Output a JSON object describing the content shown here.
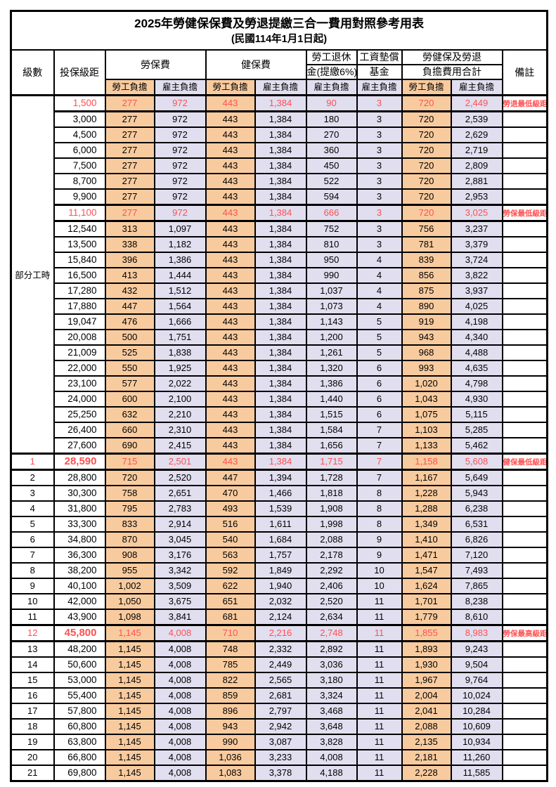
{
  "title": "2025年勞健保保費及勞退提繳三合一費用對照參考用表",
  "subtitle": "(民國114年1月1日起)",
  "colors": {
    "worker_column_bg": "#F8CB9F",
    "employer_column_bg": "#E1DEEF",
    "highlight_text": "#FF5050",
    "border": "#000000",
    "page_bg": "#FFFFFF"
  },
  "header": {
    "level_label": "級數",
    "bracket_label": "投保級距",
    "labor_label": "勞保費",
    "health_label": "健保費",
    "pension_line1": "勞工退休",
    "pension_line2": "金(提繳6%)",
    "fund_line1": "工資墊償",
    "fund_line2": "基金",
    "total_line1": "勞健保及勞退",
    "total_line2": "負擔費用合計",
    "remark_label": "備註",
    "sub_labels": [
      "勞工負擔",
      "雇主負擔",
      "勞工負擔",
      "雇主負擔",
      "雇主負擔",
      "雇主負擔",
      "勞工負擔",
      "雇主負擔"
    ]
  },
  "part_time_label": "部分工時",
  "part_time_span": 23,
  "rows": [
    {
      "bracket": "1,500",
      "values": [
        "277",
        "972",
        "443",
        "1,384",
        "90",
        "3",
        "720",
        "2,449"
      ],
      "remark": "勞退最低級距",
      "highlight": true
    },
    {
      "bracket": "3,000",
      "values": [
        "277",
        "972",
        "443",
        "1,384",
        "180",
        "3",
        "720",
        "2,539"
      ],
      "remark": ""
    },
    {
      "bracket": "4,500",
      "values": [
        "277",
        "972",
        "443",
        "1,384",
        "270",
        "3",
        "720",
        "2,629"
      ],
      "remark": ""
    },
    {
      "bracket": "6,000",
      "values": [
        "277",
        "972",
        "443",
        "1,384",
        "360",
        "3",
        "720",
        "2,719"
      ],
      "remark": ""
    },
    {
      "bracket": "7,500",
      "values": [
        "277",
        "972",
        "443",
        "1,384",
        "450",
        "3",
        "720",
        "2,809"
      ],
      "remark": ""
    },
    {
      "bracket": "8,700",
      "values": [
        "277",
        "972",
        "443",
        "1,384",
        "522",
        "3",
        "720",
        "2,881"
      ],
      "remark": ""
    },
    {
      "bracket": "9,900",
      "values": [
        "277",
        "972",
        "443",
        "1,384",
        "594",
        "3",
        "720",
        "2,953"
      ],
      "remark": ""
    },
    {
      "bracket": "11,100",
      "values": [
        "277",
        "972",
        "443",
        "1,384",
        "666",
        "3",
        "720",
        "3,025"
      ],
      "remark": "勞保最低級距",
      "highlight": true
    },
    {
      "bracket": "12,540",
      "values": [
        "313",
        "1,097",
        "443",
        "1,384",
        "752",
        "3",
        "756",
        "3,237"
      ],
      "remark": ""
    },
    {
      "bracket": "13,500",
      "values": [
        "338",
        "1,182",
        "443",
        "1,384",
        "810",
        "3",
        "781",
        "3,379"
      ],
      "remark": ""
    },
    {
      "bracket": "15,840",
      "values": [
        "396",
        "1,386",
        "443",
        "1,384",
        "950",
        "4",
        "839",
        "3,724"
      ],
      "remark": ""
    },
    {
      "bracket": "16,500",
      "values": [
        "413",
        "1,444",
        "443",
        "1,384",
        "990",
        "4",
        "856",
        "3,822"
      ],
      "remark": ""
    },
    {
      "bracket": "17,280",
      "values": [
        "432",
        "1,512",
        "443",
        "1,384",
        "1,037",
        "4",
        "875",
        "3,937"
      ],
      "remark": ""
    },
    {
      "bracket": "17,880",
      "values": [
        "447",
        "1,564",
        "443",
        "1,384",
        "1,073",
        "4",
        "890",
        "4,025"
      ],
      "remark": ""
    },
    {
      "bracket": "19,047",
      "values": [
        "476",
        "1,666",
        "443",
        "1,384",
        "1,143",
        "5",
        "919",
        "4,198"
      ],
      "remark": ""
    },
    {
      "bracket": "20,008",
      "values": [
        "500",
        "1,751",
        "443",
        "1,384",
        "1,200",
        "5",
        "943",
        "4,340"
      ],
      "remark": ""
    },
    {
      "bracket": "21,009",
      "values": [
        "525",
        "1,838",
        "443",
        "1,384",
        "1,261",
        "5",
        "968",
        "4,488"
      ],
      "remark": ""
    },
    {
      "bracket": "22,000",
      "values": [
        "550",
        "1,925",
        "443",
        "1,384",
        "1,320",
        "6",
        "993",
        "4,635"
      ],
      "remark": ""
    },
    {
      "bracket": "23,100",
      "values": [
        "577",
        "2,022",
        "443",
        "1,384",
        "1,386",
        "6",
        "1,020",
        "4,798"
      ],
      "remark": ""
    },
    {
      "bracket": "24,000",
      "values": [
        "600",
        "2,100",
        "443",
        "1,384",
        "1,440",
        "6",
        "1,043",
        "4,930"
      ],
      "remark": ""
    },
    {
      "bracket": "25,250",
      "values": [
        "632",
        "2,210",
        "443",
        "1,384",
        "1,515",
        "6",
        "1,075",
        "5,115"
      ],
      "remark": ""
    },
    {
      "bracket": "26,400",
      "values": [
        "660",
        "2,310",
        "443",
        "1,384",
        "1,584",
        "7",
        "1,103",
        "5,285"
      ],
      "remark": ""
    },
    {
      "bracket": "27,600",
      "values": [
        "690",
        "2,415",
        "443",
        "1,384",
        "1,656",
        "7",
        "1,133",
        "5,462"
      ],
      "remark": ""
    },
    {
      "level": "1",
      "bracket": "28,590",
      "values": [
        "715",
        "2,501",
        "443",
        "1,384",
        "1,715",
        "7",
        "1,158",
        "5,608"
      ],
      "remark": "健保最低級距",
      "highlight": true,
      "bold": true
    },
    {
      "level": "2",
      "bracket": "28,800",
      "values": [
        "720",
        "2,520",
        "447",
        "1,394",
        "1,728",
        "7",
        "1,167",
        "5,649"
      ],
      "remark": ""
    },
    {
      "level": "3",
      "bracket": "30,300",
      "values": [
        "758",
        "2,651",
        "470",
        "1,466",
        "1,818",
        "8",
        "1,228",
        "5,943"
      ],
      "remark": ""
    },
    {
      "level": "4",
      "bracket": "31,800",
      "values": [
        "795",
        "2,783",
        "493",
        "1,539",
        "1,908",
        "8",
        "1,288",
        "6,238"
      ],
      "remark": ""
    },
    {
      "level": "5",
      "bracket": "33,300",
      "values": [
        "833",
        "2,914",
        "516",
        "1,611",
        "1,998",
        "8",
        "1,349",
        "6,531"
      ],
      "remark": ""
    },
    {
      "level": "6",
      "bracket": "34,800",
      "values": [
        "870",
        "3,045",
        "540",
        "1,684",
        "2,088",
        "9",
        "1,410",
        "6,826"
      ],
      "remark": ""
    },
    {
      "level": "7",
      "bracket": "36,300",
      "values": [
        "908",
        "3,176",
        "563",
        "1,757",
        "2,178",
        "9",
        "1,471",
        "7,120"
      ],
      "remark": ""
    },
    {
      "level": "8",
      "bracket": "38,200",
      "values": [
        "955",
        "3,342",
        "592",
        "1,849",
        "2,292",
        "10",
        "1,547",
        "7,493"
      ],
      "remark": ""
    },
    {
      "level": "9",
      "bracket": "40,100",
      "values": [
        "1,002",
        "3,509",
        "622",
        "1,940",
        "2,406",
        "10",
        "1,624",
        "7,865"
      ],
      "remark": ""
    },
    {
      "level": "10",
      "bracket": "42,000",
      "values": [
        "1,050",
        "3,675",
        "651",
        "2,032",
        "2,520",
        "11",
        "1,701",
        "8,238"
      ],
      "remark": ""
    },
    {
      "level": "11",
      "bracket": "43,900",
      "values": [
        "1,098",
        "3,841",
        "681",
        "2,124",
        "2,634",
        "11",
        "1,779",
        "8,610"
      ],
      "remark": ""
    },
    {
      "level": "12",
      "bracket": "45,800",
      "values": [
        "1,145",
        "4,008",
        "710",
        "2,216",
        "2,748",
        "11",
        "1,855",
        "8,983"
      ],
      "remark": "勞保最高級距",
      "highlight": true,
      "bold": true
    },
    {
      "level": "13",
      "bracket": "48,200",
      "values": [
        "1,145",
        "4,008",
        "748",
        "2,332",
        "2,892",
        "11",
        "1,893",
        "9,243"
      ],
      "remark": ""
    },
    {
      "level": "14",
      "bracket": "50,600",
      "values": [
        "1,145",
        "4,008",
        "785",
        "2,449",
        "3,036",
        "11",
        "1,930",
        "9,504"
      ],
      "remark": ""
    },
    {
      "level": "15",
      "bracket": "53,000",
      "values": [
        "1,145",
        "4,008",
        "822",
        "2,565",
        "3,180",
        "11",
        "1,967",
        "9,764"
      ],
      "remark": ""
    },
    {
      "level": "16",
      "bracket": "55,400",
      "values": [
        "1,145",
        "4,008",
        "859",
        "2,681",
        "3,324",
        "11",
        "2,004",
        "10,024"
      ],
      "remark": ""
    },
    {
      "level": "17",
      "bracket": "57,800",
      "values": [
        "1,145",
        "4,008",
        "896",
        "2,797",
        "3,468",
        "11",
        "2,041",
        "10,284"
      ],
      "remark": ""
    },
    {
      "level": "18",
      "bracket": "60,800",
      "values": [
        "1,145",
        "4,008",
        "943",
        "2,942",
        "3,648",
        "11",
        "2,088",
        "10,609"
      ],
      "remark": ""
    },
    {
      "level": "19",
      "bracket": "63,800",
      "values": [
        "1,145",
        "4,008",
        "990",
        "3,087",
        "3,828",
        "11",
        "2,135",
        "10,934"
      ],
      "remark": ""
    },
    {
      "level": "20",
      "bracket": "66,800",
      "values": [
        "1,145",
        "4,008",
        "1,036",
        "3,233",
        "4,008",
        "11",
        "2,181",
        "11,260"
      ],
      "remark": ""
    },
    {
      "level": "21",
      "bracket": "69,800",
      "values": [
        "1,145",
        "4,008",
        "1,083",
        "3,378",
        "4,188",
        "11",
        "2,228",
        "11,585"
      ],
      "remark": ""
    }
  ]
}
